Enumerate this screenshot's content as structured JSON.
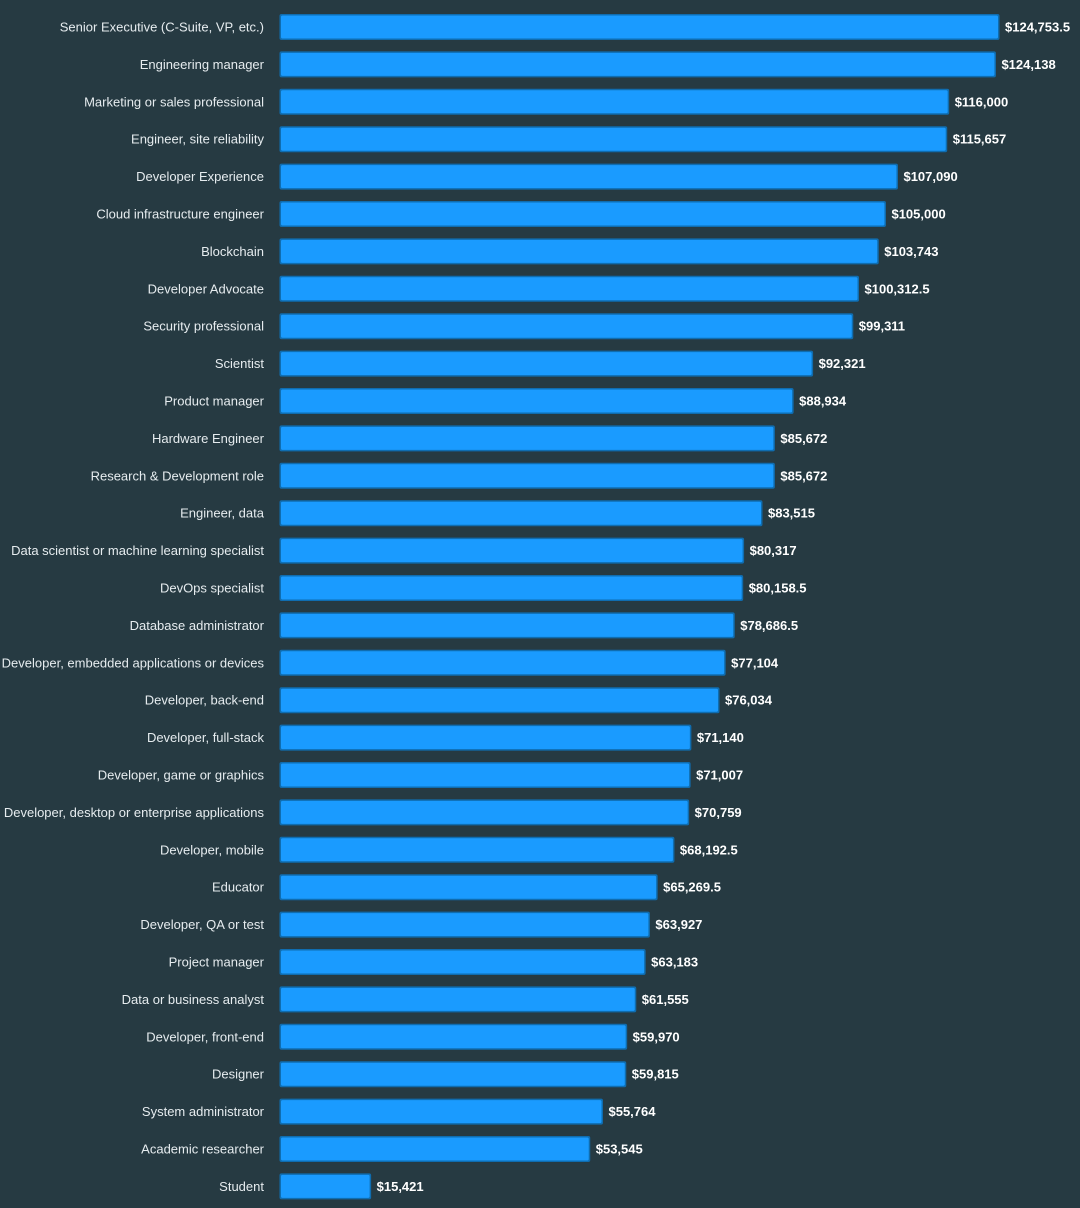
{
  "colors": {
    "background": "#263a42",
    "bar": "#1a9bff",
    "bar_border": "#0f6db0",
    "label_text": "#e6ecef",
    "value_text": "#ffffff"
  },
  "chart_data": {
    "type": "bar",
    "orientation": "horizontal",
    "title": "",
    "xlabel": "",
    "ylabel": "",
    "grid": false,
    "legend": "none",
    "xlim": [
      0,
      124753.5
    ],
    "categories": [
      "Senior Executive (C-Suite, VP, etc.)",
      "Engineering manager",
      "Marketing or sales professional",
      "Engineer, site reliability",
      "Developer Experience",
      "Cloud infrastructure engineer",
      "Blockchain",
      "Developer Advocate",
      "Security professional",
      "Scientist",
      "Product manager",
      "Hardware Engineer",
      "Research & Development role",
      "Engineer, data",
      "Data scientist or machine learning specialist",
      "DevOps specialist",
      "Database administrator",
      "Developer, embedded applications or devices",
      "Developer, back-end",
      "Developer, full-stack",
      "Developer, game or graphics",
      "Developer, desktop or enterprise applications",
      "Developer, mobile",
      "Educator",
      "Developer, QA or test",
      "Project manager",
      "Data or business analyst",
      "Developer, front-end",
      "Designer",
      "System administrator",
      "Academic researcher",
      "Student"
    ],
    "values": [
      124753.5,
      124138,
      116000,
      115657,
      107090,
      105000,
      103743,
      100312.5,
      99311,
      92321,
      88934,
      85672,
      85672,
      83515,
      80317,
      80158.5,
      78686.5,
      77104,
      76034,
      71140,
      71007,
      70759,
      68192.5,
      65269.5,
      63927,
      63183,
      61555,
      59970,
      59815,
      55764,
      53545,
      15421
    ],
    "value_labels": [
      "$124,753.5",
      "$124,138",
      "$116,000",
      "$115,657",
      "$107,090",
      "$105,000",
      "$103,743",
      "$100,312.5",
      "$99,311",
      "$92,321",
      "$88,934",
      "$85,672",
      "$85,672",
      "$83,515",
      "$80,317",
      "$80,158.5",
      "$78,686.5",
      "$77,104",
      "$76,034",
      "$71,140",
      "$71,007",
      "$70,759",
      "$68,192.5",
      "$65,269.5",
      "$63,927",
      "$63,183",
      "$61,555",
      "$59,970",
      "$59,815",
      "$55,764",
      "$53,545",
      "$15,421"
    ]
  }
}
